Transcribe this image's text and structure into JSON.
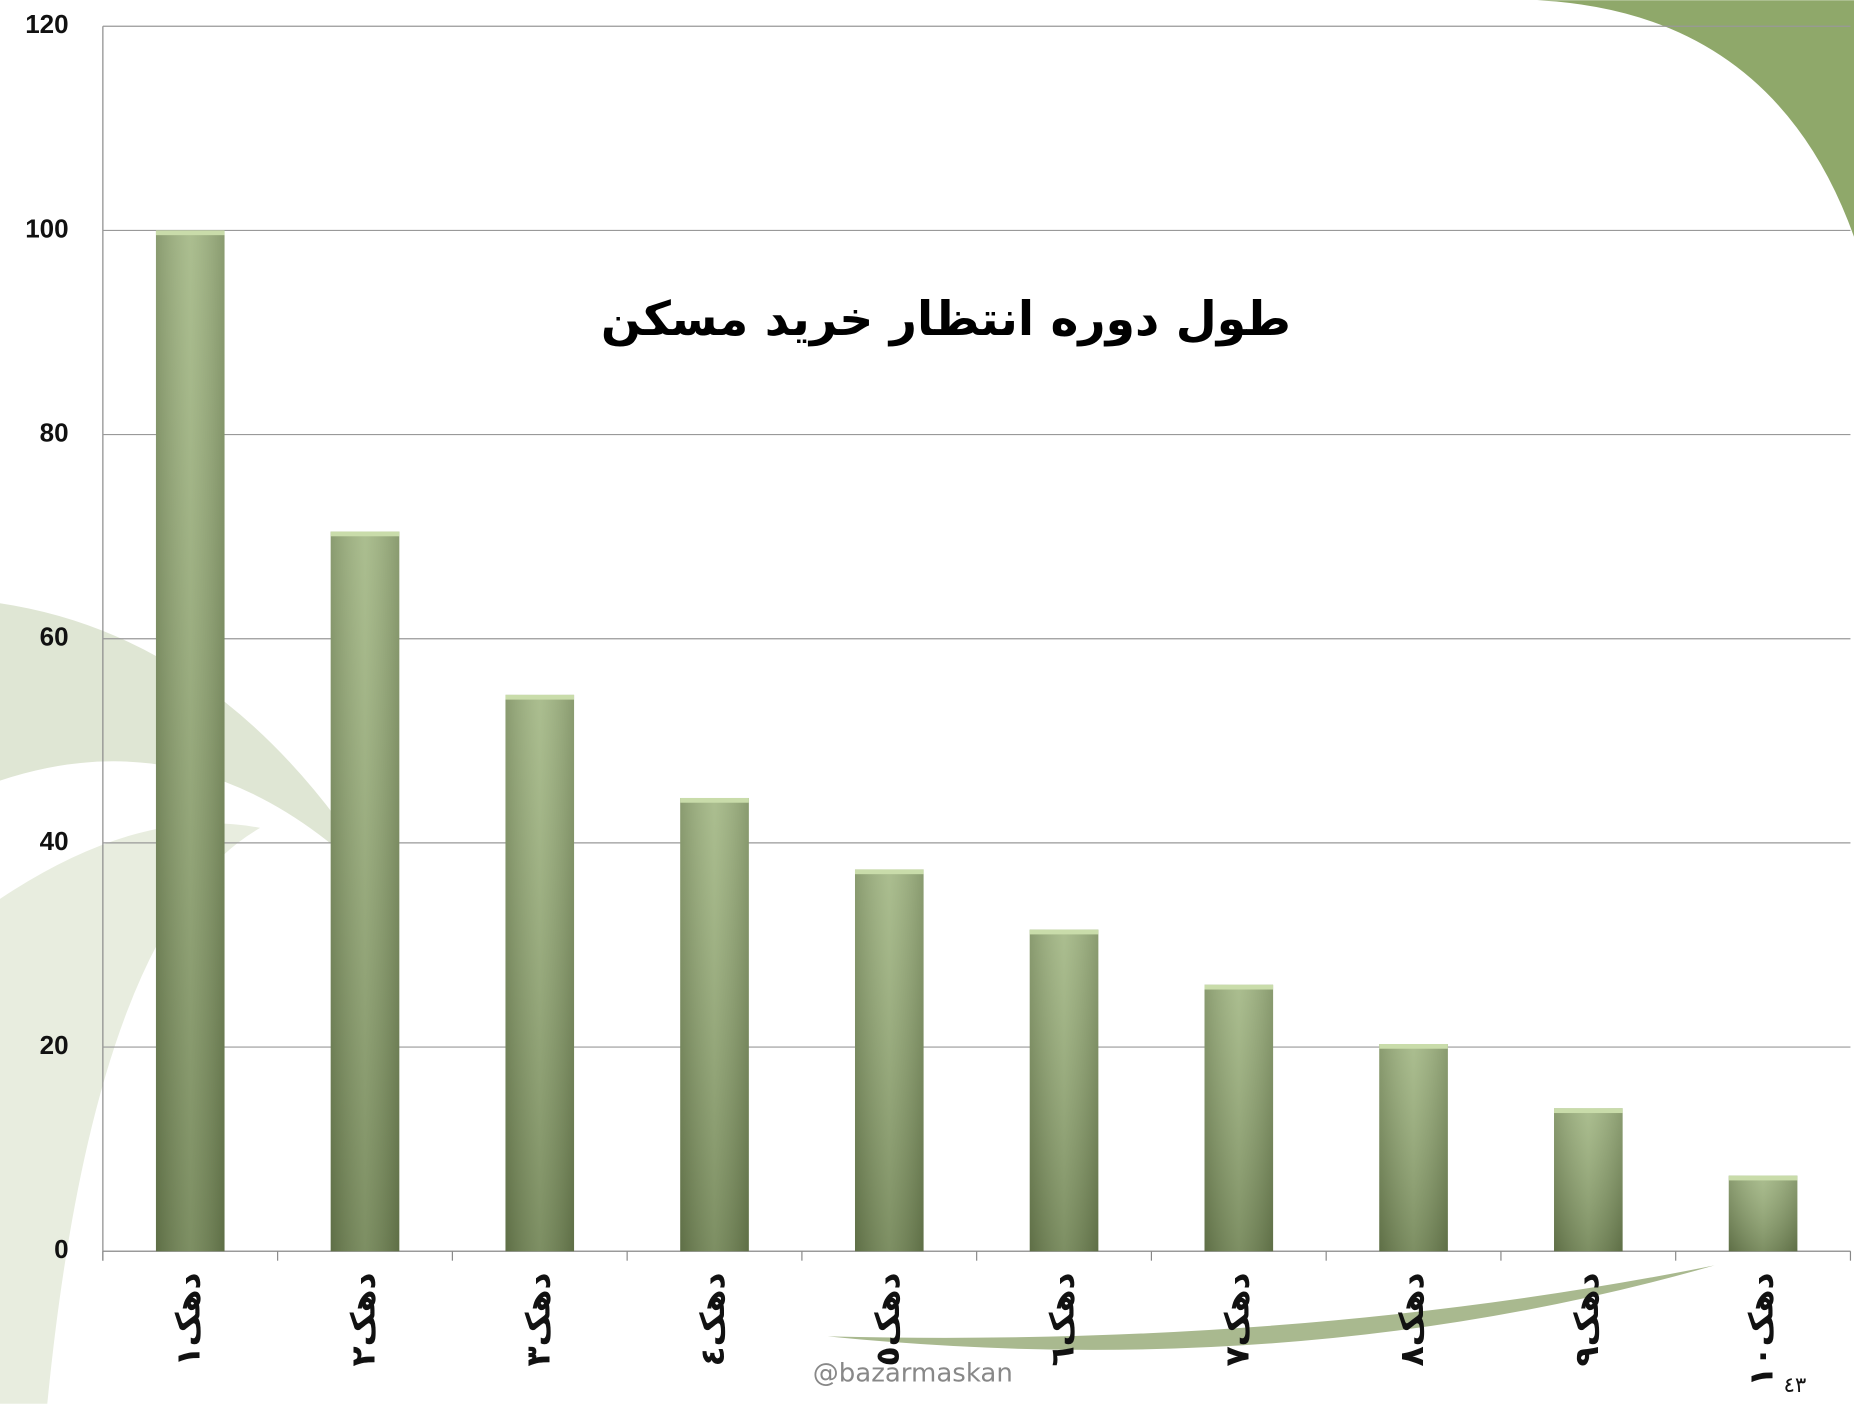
{
  "chart_data": {
    "type": "bar",
    "title": "طول دوره انتظار خرید مسکن",
    "categories": [
      "دهک١",
      "دهک٢",
      "دهک٣",
      "دهک٤",
      "دهک٥",
      "دهک٦",
      "دهک٧",
      "دهک٨",
      "دهک٩",
      "دهک١٠"
    ],
    "values": [
      100,
      70.5,
      54.5,
      44.4,
      37.4,
      31.5,
      26.1,
      20.3,
      14.0,
      7.4
    ],
    "color": "#8fa86a",
    "ylim": [
      0,
      120
    ],
    "yticks": [
      0,
      20,
      40,
      60,
      80,
      100,
      120
    ],
    "grid": true,
    "annotations": [
      "@bazarmaskan",
      "٤٣"
    ]
  }
}
